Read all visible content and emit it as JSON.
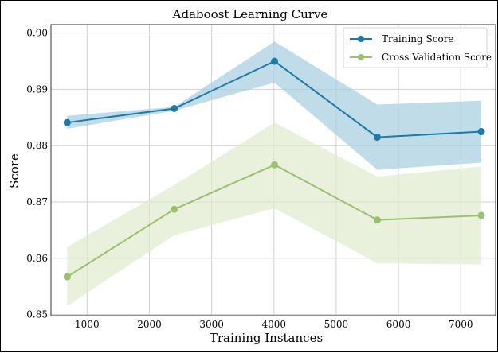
{
  "chart_data": {
    "type": "line",
    "title": "Adaboost Learning Curve",
    "xlabel": "Training Instances",
    "ylabel": "Score",
    "xlim": [
      420,
      7560
    ],
    "ylim": [
      0.8498,
      0.9015
    ],
    "xticks": [
      1000,
      2000,
      3000,
      4000,
      5000,
      6000,
      7000
    ],
    "yticks": [
      0.85,
      0.86,
      0.87,
      0.88,
      0.89,
      0.9
    ],
    "ytick_labels": [
      "0.85",
      "0.86",
      "0.87",
      "0.88",
      "0.89",
      "0.90"
    ],
    "grid": true,
    "legend_position": "top-right",
    "x": [
      680,
      2400,
      4010,
      5660,
      7330
    ],
    "series": [
      {
        "name": "Training Score",
        "color": "#1a7ca8",
        "band_color": "#a6cde0",
        "values": [
          0.8841,
          0.8866,
          0.895,
          0.8815,
          0.8825
        ],
        "lower": [
          0.883,
          0.8862,
          0.8912,
          0.8757,
          0.877
        ],
        "upper": [
          0.8853,
          0.8869,
          0.8985,
          0.8873,
          0.888
        ]
      },
      {
        "name": "Cross Validation Score",
        "color": "#97c26e",
        "band_color": "#dfeacd",
        "values": [
          0.8567,
          0.8687,
          0.8766,
          0.8668,
          0.8676
        ],
        "lower": [
          0.8515,
          0.8641,
          0.8689,
          0.8591,
          0.8589
        ],
        "upper": [
          0.862,
          0.873,
          0.8841,
          0.8745,
          0.8763
        ]
      }
    ]
  }
}
